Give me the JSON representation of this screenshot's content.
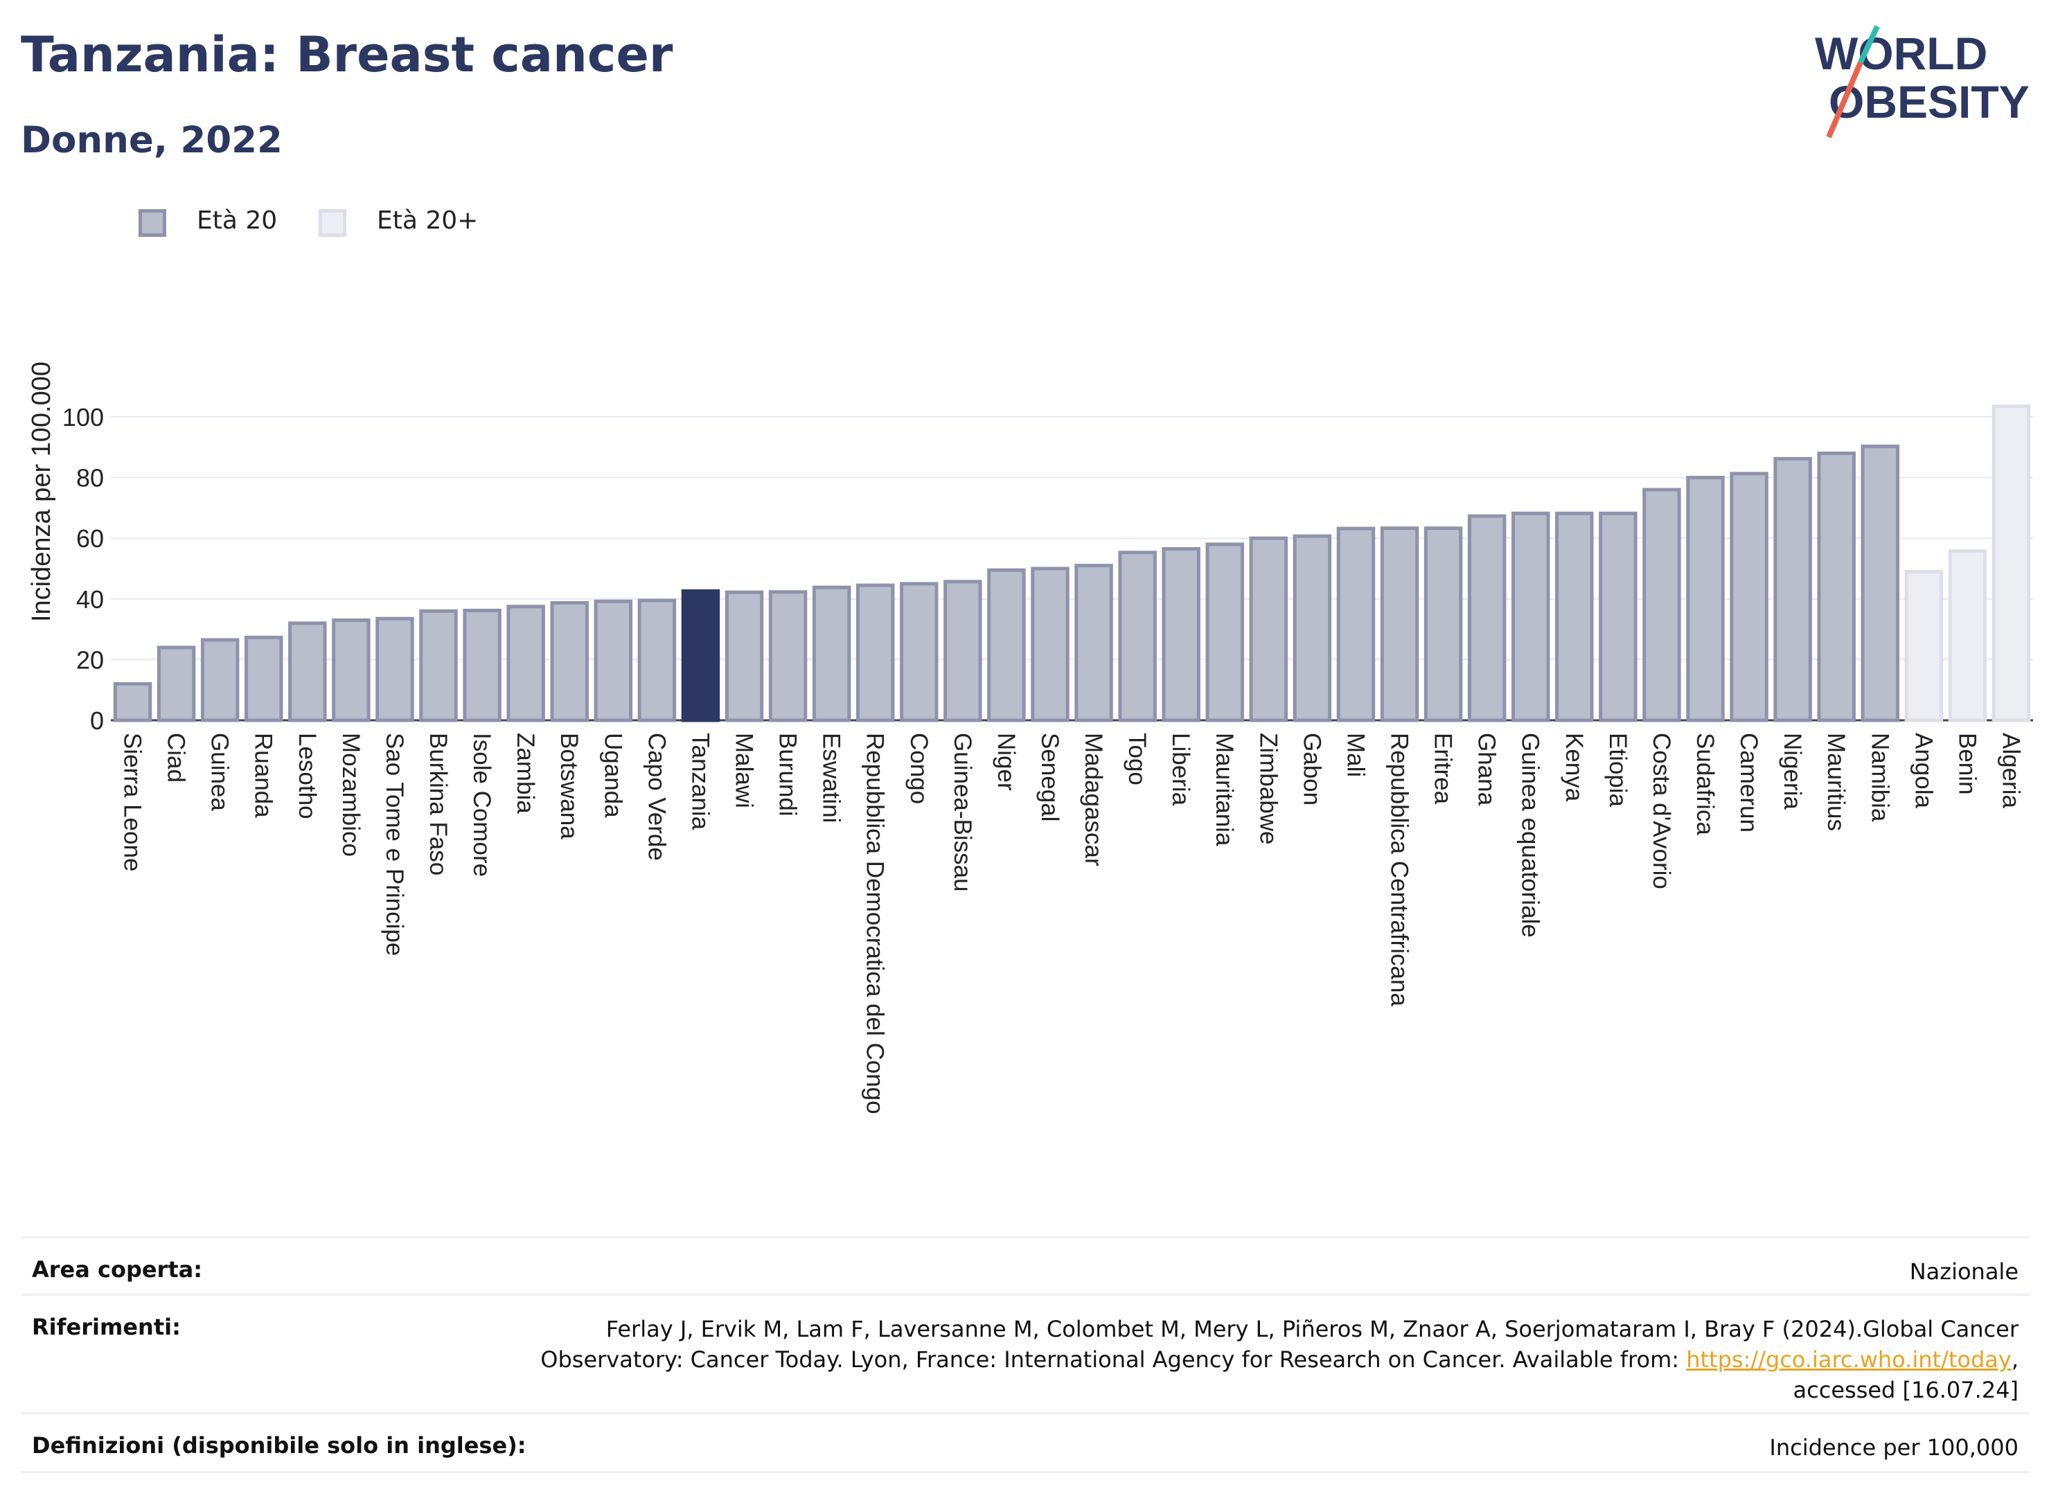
{
  "header": {
    "title": "Tanzania: Breast cancer",
    "subtitle": "Donne, 2022",
    "logo_line1": "WORLD",
    "logo_line2": "OBESITY"
  },
  "legend": {
    "items": [
      {
        "label": "Età 20",
        "color": "#b9bdcc",
        "border": "#8e93ab"
      },
      {
        "label": "Età 20+",
        "color": "#eceef3",
        "border": "#dcdfe8"
      }
    ]
  },
  "colors": {
    "bar": "#b9bdcc",
    "bar_border": "#8e93ab",
    "highlight": "#2c3862",
    "bar_20plus": "#eceef3",
    "bar_20plus_border": "#dcdfe8"
  },
  "chart_data": {
    "type": "bar",
    "ylabel": "Incidenza per 100.000",
    "ylim": [
      0,
      105
    ],
    "yticks": [
      0,
      20,
      40,
      60,
      80,
      100
    ],
    "grid": true,
    "highlight": "Tanzania",
    "categories": [
      "Sierra Leone",
      "Ciad",
      "Guinea",
      "Ruanda",
      "Lesotho",
      "Mozambico",
      "Sao Tome e Principe",
      "Burkina Faso",
      "Isole Comore",
      "Zambia",
      "Botswana",
      "Uganda",
      "Capo Verde",
      "Tanzania",
      "Malawi",
      "Burundi",
      "Eswatini",
      "Repubblica Democratica del Congo",
      "Congo",
      "Guinea-Bissau",
      "Niger",
      "Senegal",
      "Madagascar",
      "Togo",
      "Liberia",
      "Mauritania",
      "Zimbabwe",
      "Gabon",
      "Mali",
      "Repubblica Centrafricana",
      "Eritrea",
      "Ghana",
      "Guinea equatoriale",
      "Kenya",
      "Etiopia",
      "Costa d'Avorio",
      "Sudafrica",
      "Camerun",
      "Nigeria",
      "Mauritius",
      "Namibia",
      "Angola",
      "Benin",
      "Algeria"
    ],
    "values": [
      12,
      24,
      26.5,
      27.3,
      32,
      33,
      33.5,
      36,
      36.2,
      37.5,
      38.7,
      39.2,
      39.5,
      42.6,
      42.2,
      42.3,
      43.8,
      44.5,
      45,
      45.7,
      49.5,
      50,
      51,
      55.3,
      56.5,
      58,
      60,
      60.7,
      63.2,
      63.3,
      63.3,
      67.3,
      68.2,
      68.2,
      68.2,
      76,
      80,
      81.3,
      86.2,
      88,
      90.3,
      49,
      55.8,
      103.5
    ],
    "series_group": [
      "Età 20",
      "Età 20",
      "Età 20",
      "Età 20",
      "Età 20",
      "Età 20",
      "Età 20",
      "Età 20",
      "Età 20",
      "Età 20",
      "Età 20",
      "Età 20",
      "Età 20",
      "Età 20",
      "Età 20",
      "Età 20",
      "Età 20",
      "Età 20",
      "Età 20",
      "Età 20",
      "Età 20",
      "Età 20",
      "Età 20",
      "Età 20",
      "Età 20",
      "Età 20",
      "Età 20",
      "Età 20",
      "Età 20",
      "Età 20",
      "Età 20",
      "Età 20",
      "Età 20",
      "Età 20",
      "Età 20",
      "Età 20",
      "Età 20",
      "Età 20",
      "Età 20",
      "Età 20",
      "Età 20",
      "Età 20+",
      "Età 20+",
      "Età 20+"
    ]
  },
  "info": {
    "area_key": "Area coperta:",
    "area_val": "Nazionale",
    "ref_key": "Riferimenti:",
    "ref_line1": "Ferlay J, Ervik M, Lam F, Laversanne M, Colombet M, Mery L, Piñeros M, Znaor A, Soerjomataram I, Bray F (2024).Global Cancer",
    "ref_line2_pre": "Observatory: Cancer Today. Lyon, France: International Agency for Research on Cancer. Available from: ",
    "ref_link": "https://gco.iarc.who.int/today",
    "ref_line2_post": ",",
    "ref_line3": "accessed [16.07.24]",
    "def_key": "Definizioni (disponibile solo in inglese):",
    "def_val": "Incidence per 100,000"
  }
}
